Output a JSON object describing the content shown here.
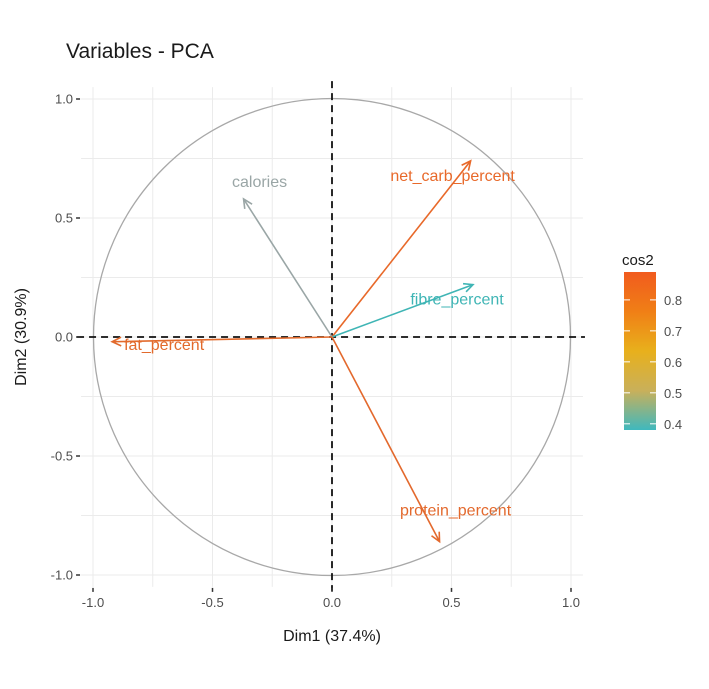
{
  "chart_data": {
    "type": "scatter",
    "subtype": "pca-variable-correlation-circle",
    "title": "Variables - PCA",
    "xlabel": "Dim1 (37.4%)",
    "ylabel": "Dim2 (30.9%)",
    "xlim": [
      -1.05,
      1.05
    ],
    "ylim": [
      -1.05,
      1.05
    ],
    "x_ticks": [
      "-1.0",
      "-0.5",
      "0.0",
      "0.5",
      "1.0"
    ],
    "y_ticks": [
      "-1.0",
      "-0.5",
      "0.0",
      "0.5",
      "1.0"
    ],
    "x_tick_values": [
      -1.0,
      -0.5,
      0.0,
      0.5,
      1.0
    ],
    "y_tick_values": [
      -1.0,
      -0.5,
      0.0,
      0.5,
      1.0
    ],
    "grid": true,
    "unit_circle": true,
    "reference_lines": [
      "x=0 dashed",
      "y=0 dashed"
    ],
    "variables": [
      {
        "name": "net_carb_percent",
        "x": 0.58,
        "y": 0.74,
        "cos2": 0.88,
        "color": "#e8692a"
      },
      {
        "name": "fibre_percent",
        "x": 0.59,
        "y": 0.22,
        "cos2": 0.4,
        "color": "#3fb5b5"
      },
      {
        "name": "calories",
        "x": -0.37,
        "y": 0.58,
        "cos2": 0.47,
        "color": "#9aa6a6"
      },
      {
        "name": "fat_percent",
        "x": -0.92,
        "y": -0.02,
        "cos2": 0.85,
        "color": "#e26a2c"
      },
      {
        "name": "protein_percent",
        "x": 0.45,
        "y": -0.86,
        "cos2": 0.94,
        "color": "#e3692d"
      }
    ],
    "legend": {
      "title": "cos2",
      "position": "right",
      "type": "gradient",
      "ticks": [
        "0.8",
        "0.7",
        "0.6",
        "0.5",
        "0.4"
      ],
      "tick_values": [
        0.8,
        0.7,
        0.6,
        0.5,
        0.4
      ],
      "range": [
        0.38,
        0.89
      ],
      "gradient_colors": [
        "#3fb8be",
        "#c9b05a",
        "#e8b01c",
        "#f07f16",
        "#f15b1e"
      ]
    }
  }
}
